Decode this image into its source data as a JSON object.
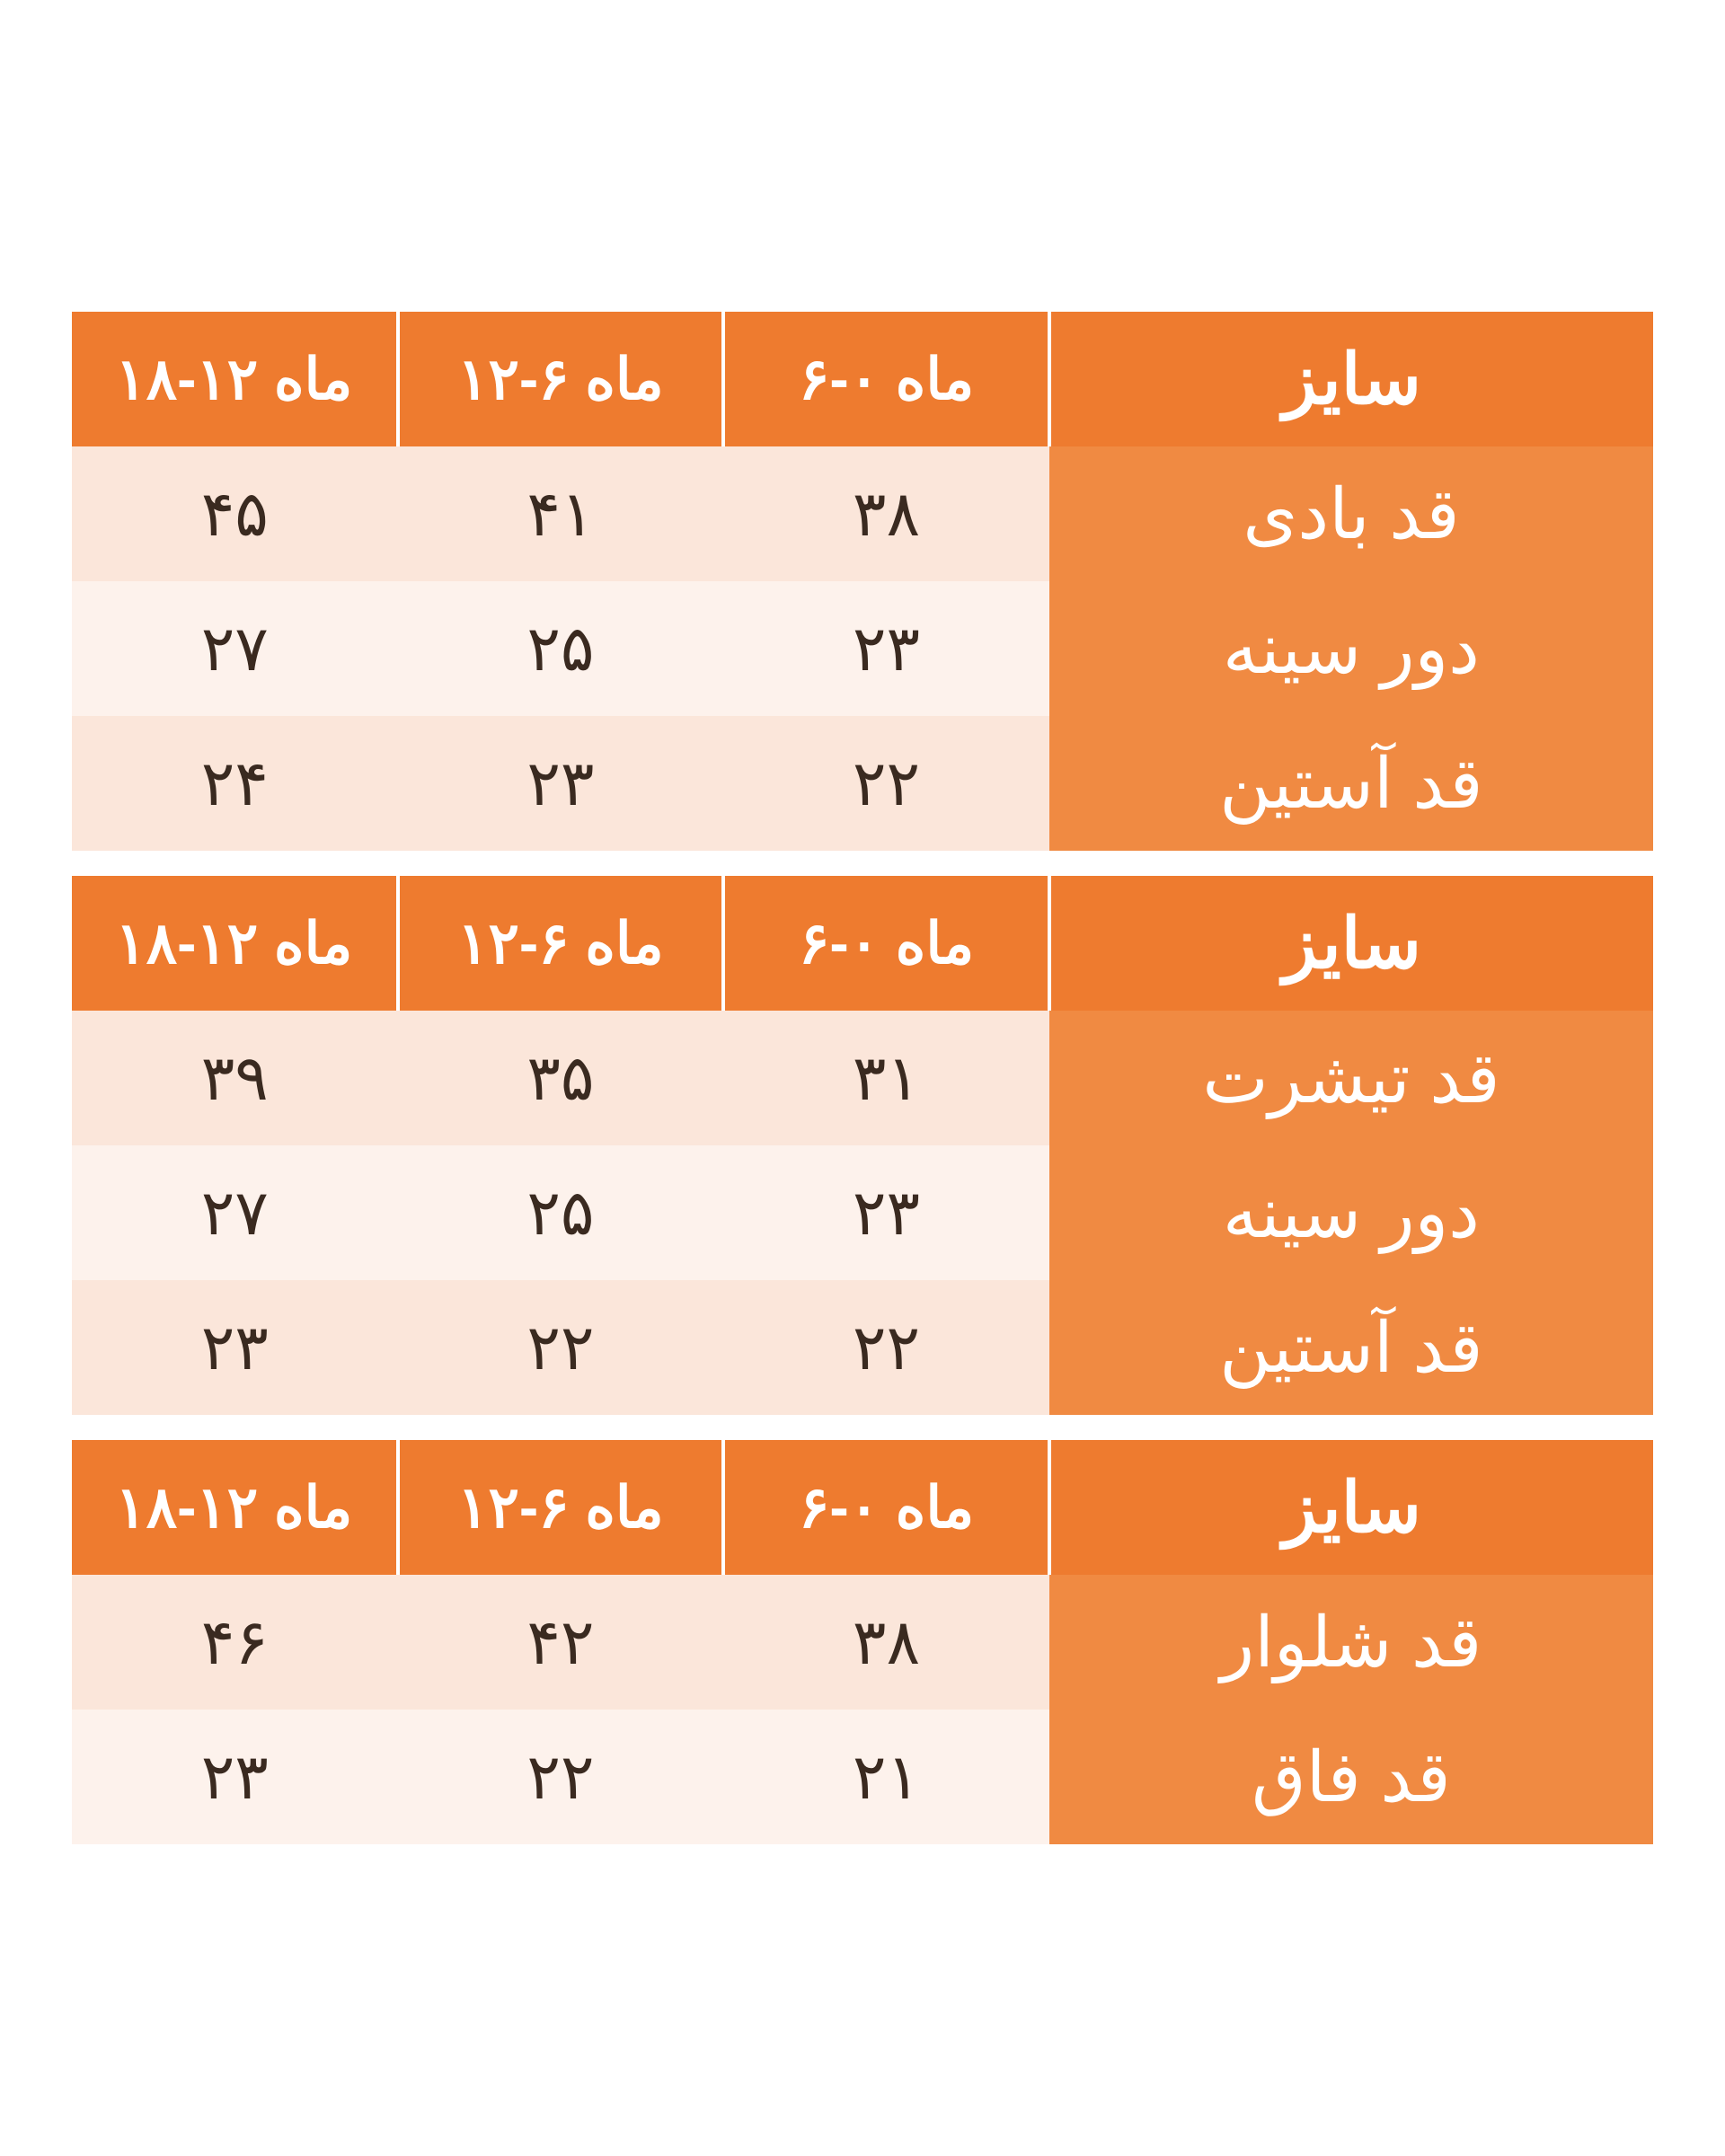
{
  "colors": {
    "hdr_bg": "#ee7b2f",
    "hdr_fg": "#ffffff",
    "rowlabel_bg": "#f08a42",
    "rowlabel_fg": "#ffffff",
    "row_even_bg": "#fbe6da",
    "row_odd_bg": "#fdf2ec",
    "val_fg": "#3a2a20"
  },
  "tables": [
    {
      "size_label": "سایز",
      "columns": [
        "۶-۰ ماه",
        "۱۲-۶ ماه",
        "۱۸-۱۲ ماه"
      ],
      "rows": [
        {
          "label": "قد بادی",
          "values": [
            "۳۸",
            "۴۱",
            "۴۵"
          ]
        },
        {
          "label": "دور سینه",
          "values": [
            "۲۳",
            "۲۵",
            "۲۷"
          ]
        },
        {
          "label": "قد آستین",
          "values": [
            "۲۲",
            "۲۳",
            "۲۴"
          ]
        }
      ]
    },
    {
      "size_label": "سایز",
      "columns": [
        "۶-۰ ماه",
        "۱۲-۶ ماه",
        "۱۸-۱۲ ماه"
      ],
      "rows": [
        {
          "label": "قد تیشرت",
          "values": [
            "۳۱",
            "۳۵",
            "۳۹"
          ]
        },
        {
          "label": "دور سینه",
          "values": [
            "۲۳",
            "۲۵",
            "۲۷"
          ]
        },
        {
          "label": "قد آستین",
          "values": [
            "۲۲",
            "۲۲",
            "۲۳"
          ]
        }
      ]
    },
    {
      "size_label": "سایز",
      "columns": [
        "۶-۰ ماه",
        "۱۲-۶ ماه",
        "۱۸-۱۲ ماه"
      ],
      "rows": [
        {
          "label": "قد شلوار",
          "values": [
            "۳۸",
            "۴۲",
            "۴۶"
          ]
        },
        {
          "label": "قد فاق",
          "values": [
            "۲۱",
            "۲۲",
            "۲۳"
          ]
        }
      ]
    }
  ]
}
